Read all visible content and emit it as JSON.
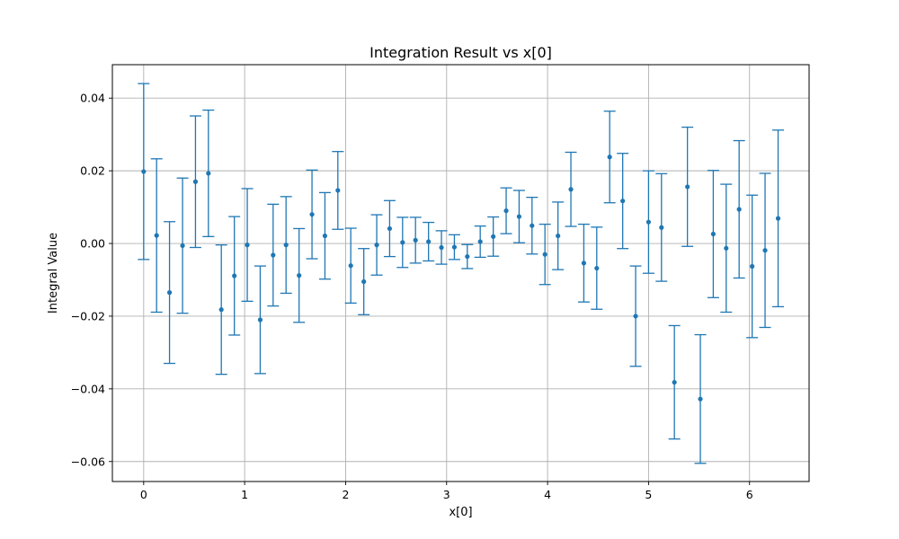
{
  "chart_data": {
    "type": "scatter",
    "title": "Integration Result vs x[0]",
    "xlabel": "x[0]",
    "ylabel": "Integral Value",
    "xlim": [
      -0.31,
      6.59
    ],
    "ylim": [
      -0.0655,
      0.0492
    ],
    "grid": true,
    "xticks": [
      0,
      1,
      2,
      3,
      4,
      5,
      6
    ],
    "xtick_labels": [
      "0",
      "1",
      "2",
      "3",
      "4",
      "5",
      "6"
    ],
    "yticks": [
      -0.06,
      -0.04,
      -0.02,
      0.0,
      0.02,
      0.04
    ],
    "ytick_labels": [
      "−0.06",
      "−0.04",
      "−0.02",
      "0.00",
      "0.02",
      "0.04"
    ],
    "color": "#1f77b4",
    "x": [
      0.0,
      0.128,
      0.256,
      0.385,
      0.513,
      0.641,
      0.769,
      0.898,
      1.026,
      1.154,
      1.282,
      1.41,
      1.539,
      1.667,
      1.795,
      1.923,
      2.051,
      2.18,
      2.308,
      2.436,
      2.564,
      2.692,
      2.821,
      2.949,
      3.077,
      3.205,
      3.333,
      3.462,
      3.59,
      3.718,
      3.846,
      3.974,
      4.103,
      4.231,
      4.359,
      4.487,
      4.615,
      4.744,
      4.872,
      5.0,
      5.128,
      5.256,
      5.385,
      5.513,
      5.641,
      5.769,
      5.897,
      6.026,
      6.154,
      6.283
    ],
    "y": [
      0.0198,
      0.0022,
      -0.0135,
      -0.0006,
      0.017,
      0.0193,
      -0.0182,
      -0.0089,
      -0.0004,
      -0.021,
      -0.0032,
      -0.0004,
      -0.0088,
      0.008,
      0.0021,
      0.0146,
      -0.0061,
      -0.0105,
      -0.0004,
      0.0041,
      0.0003,
      0.0009,
      0.0005,
      -0.0011,
      -0.001,
      -0.0036,
      0.0005,
      0.0019,
      0.009,
      0.0074,
      0.0049,
      -0.003,
      0.0021,
      0.0149,
      -0.0054,
      -0.0068,
      0.0238,
      0.0117,
      -0.02,
      0.0059,
      0.0044,
      -0.0382,
      0.0156,
      -0.0428,
      0.0026,
      -0.0013,
      0.0094,
      -0.0063,
      -0.0019,
      0.0069
    ],
    "yerr": [
      0.0242,
      0.0211,
      0.0195,
      0.0186,
      0.0181,
      0.0174,
      0.0178,
      0.0163,
      0.0155,
      0.0148,
      0.014,
      0.0133,
      0.0129,
      0.0122,
      0.0119,
      0.0107,
      0.0103,
      0.0091,
      0.0083,
      0.0077,
      0.0069,
      0.0063,
      0.0053,
      0.0046,
      0.0034,
      0.0033,
      0.0043,
      0.0054,
      0.0063,
      0.0072,
      0.0078,
      0.0083,
      0.0093,
      0.0102,
      0.0107,
      0.0113,
      0.0126,
      0.0131,
      0.0138,
      0.0141,
      0.0148,
      0.0156,
      0.0164,
      0.0177,
      0.0175,
      0.0176,
      0.0189,
      0.0196,
      0.0212,
      0.0243
    ]
  }
}
